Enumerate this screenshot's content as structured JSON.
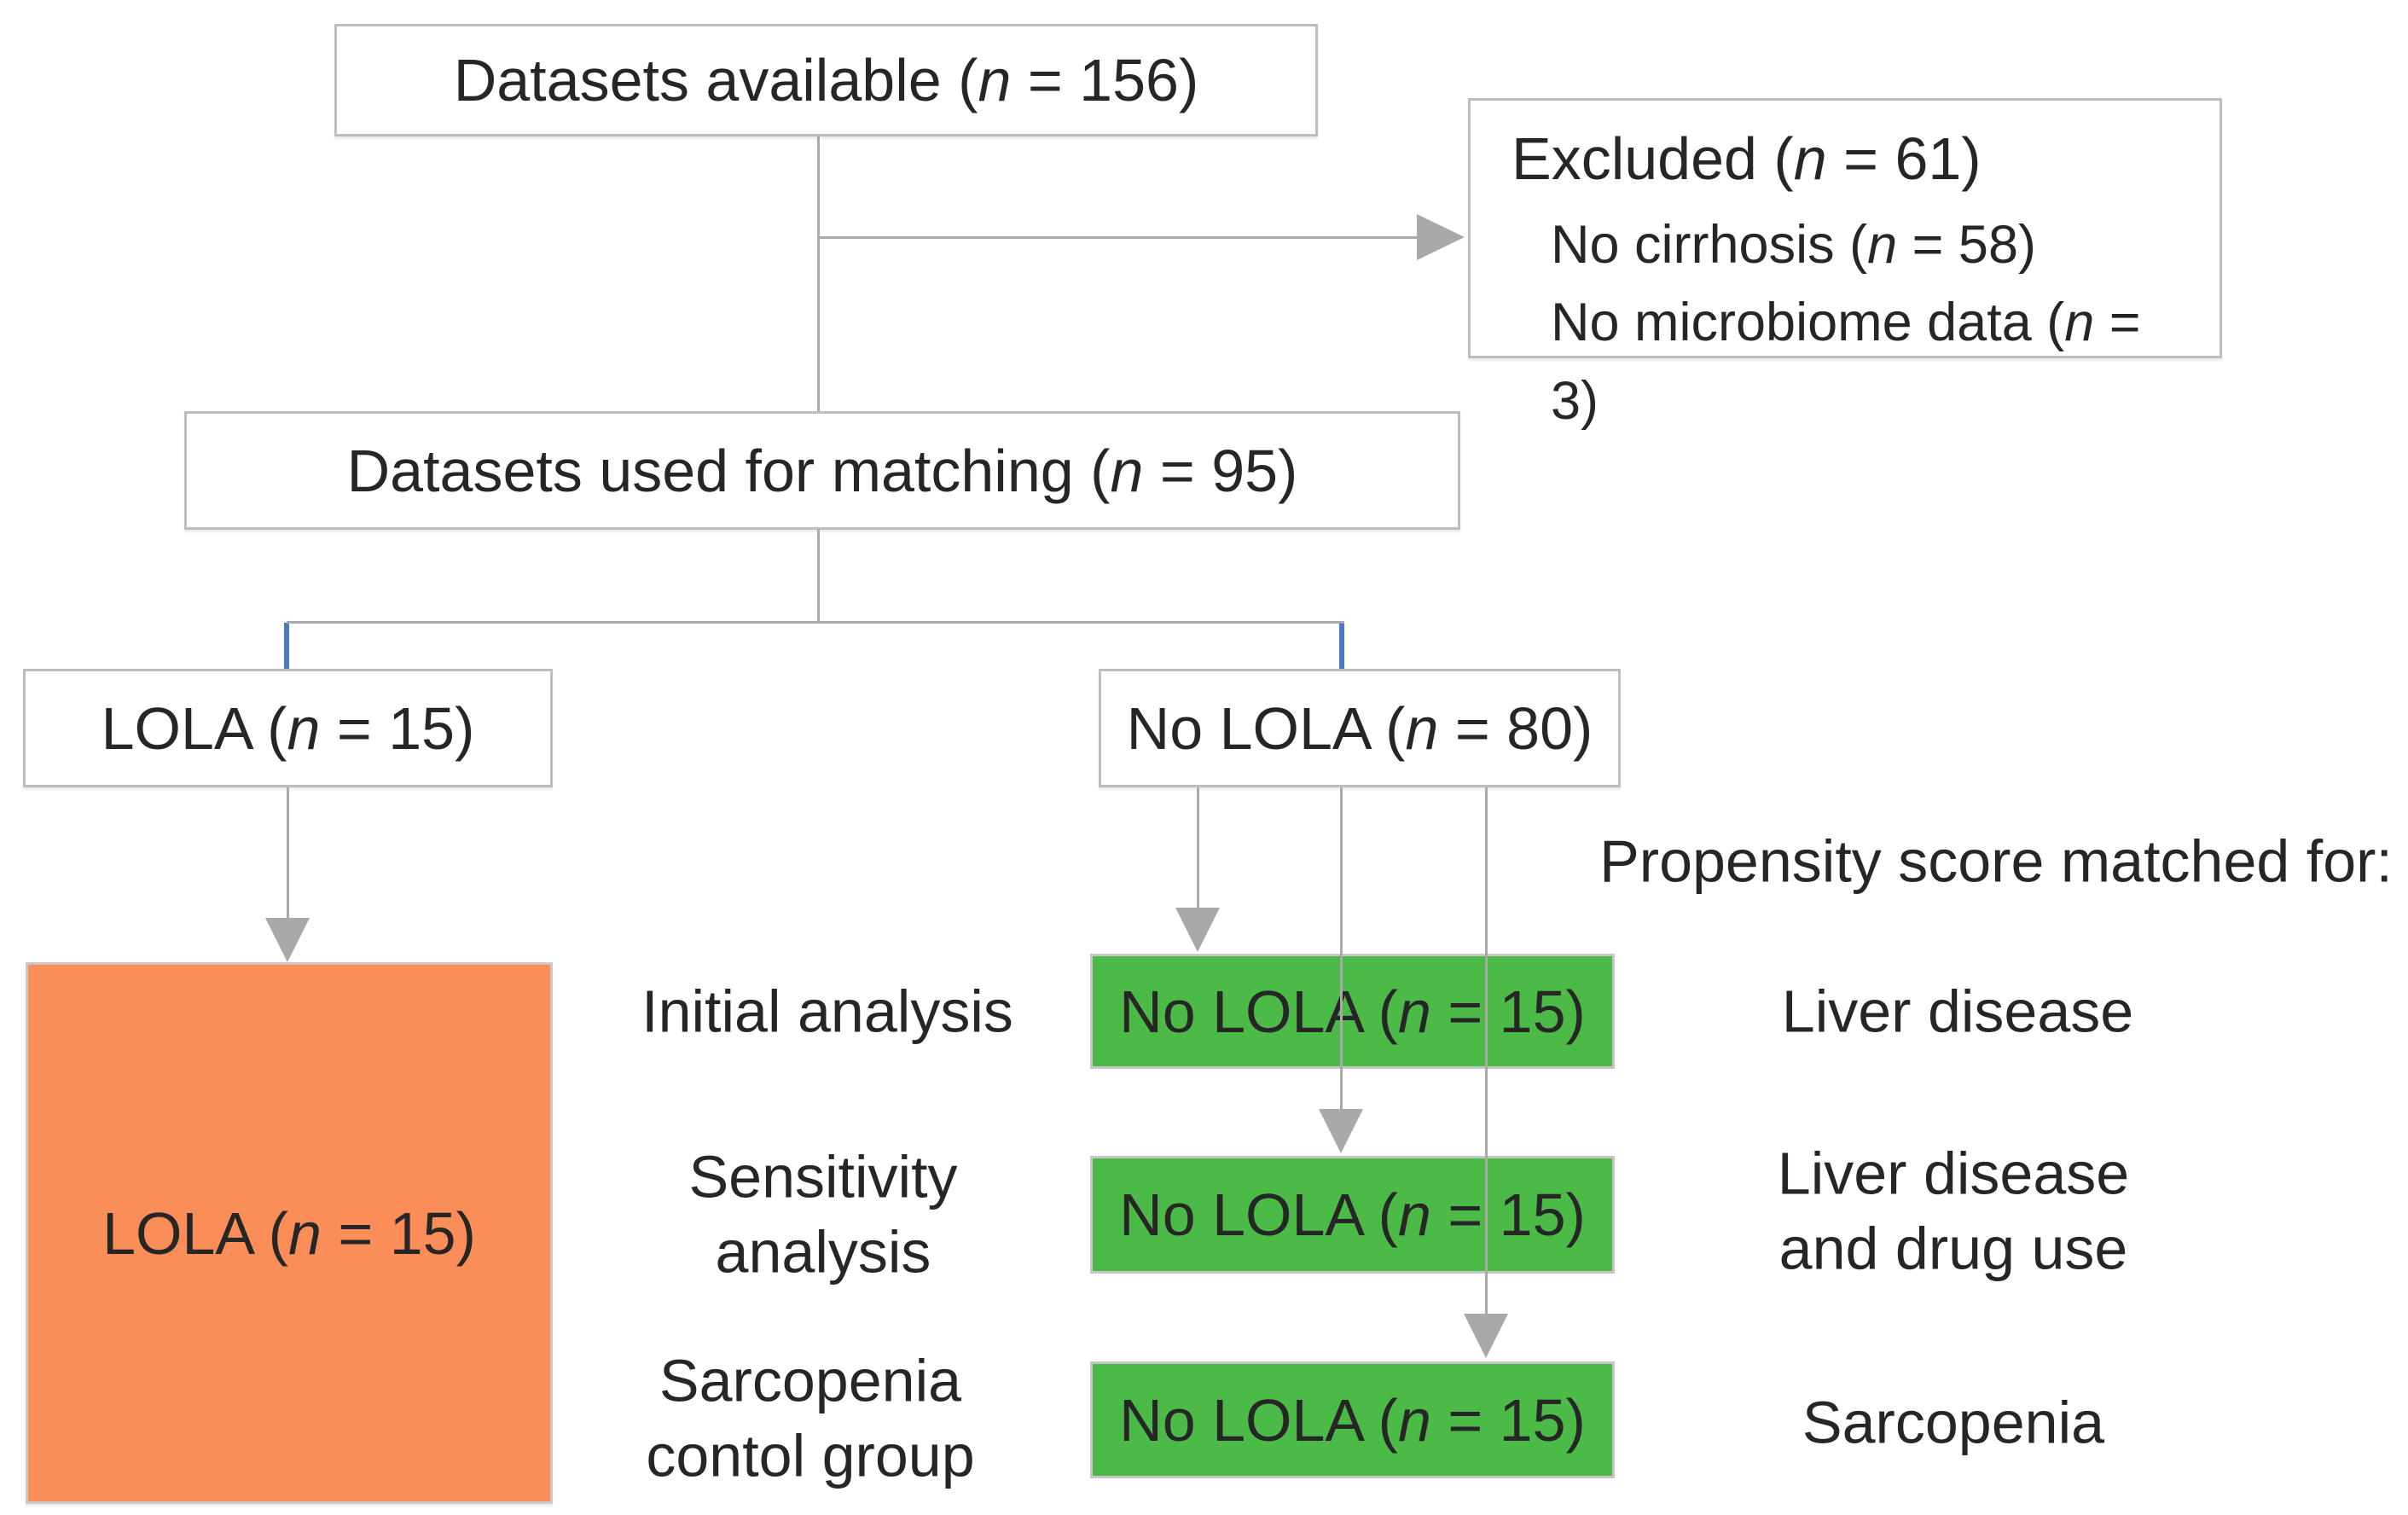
{
  "diagram": {
    "top_box": "Datasets available (*n* = 156)",
    "excluded": {
      "title": "Excluded (*n* = 61)",
      "items": [
        "No cirrhosis (*n* = 58)",
        "No microbiome  data (*n* = 3)"
      ]
    },
    "matching_box": "Datasets used for matching (*n* = 95)",
    "lola_branch_box": "LOLA (*n* = 15)",
    "no_lola_branch_box": "No LOLA (*n* = 80)",
    "lola_group_box": "LOLA (*n* = 15)",
    "green_boxes": [
      "No LOLA (*n* = 15)",
      "No LOLA (*n* = 15)",
      "No LOLA (*n* = 15)"
    ],
    "row_labels": [
      "Initial analysis",
      "Sensitivity\nanalysis",
      "Sarcopenia\ncontol group"
    ],
    "right_heading": "Propensity score matched for:",
    "match_criteria": [
      "Liver disease",
      "Liver disease\nand drug use",
      "Sarcopenia"
    ],
    "colors": {
      "lola_group_fill": "#fb8d58",
      "no_lola_group_fill": "#4cba47",
      "connector_gray": "#a9a9a9",
      "connector_blue": "#4a79c4",
      "box_border": "#bdbdbd",
      "text": "#262626"
    }
  }
}
